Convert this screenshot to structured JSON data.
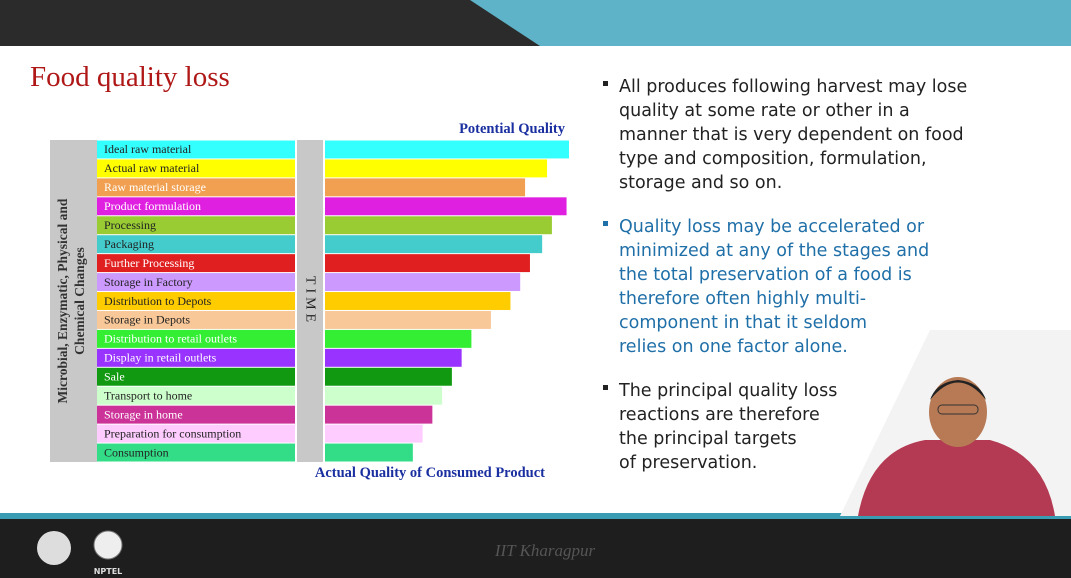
{
  "slide": {
    "title": "Food quality loss",
    "bullets": [
      {
        "lines": [
          "All produces following harvest may lose",
          "quality at some rate or other in a",
          "manner that is very dependent on food",
          "type and composition, formulation,",
          "storage and so on."
        ],
        "color": "#222222"
      },
      {
        "lines": [
          "Quality loss may be accelerated or",
          "minimized at any of the stages and",
          "the total preservation of a food is",
          "therefore often highly multi-",
          "component in that it seldom",
          "relies on one factor alone."
        ],
        "color": "#1f6fa8"
      },
      {
        "lines": [
          "The principal quality loss",
          "reactions are therefore",
          "the principal  targets",
          "of preservation."
        ],
        "color": "#222222"
      }
    ],
    "footer": {
      "institute": "IIT Kharagpur",
      "logo_text": "NPTEL"
    }
  },
  "chart_data": {
    "type": "bar",
    "top_label": "Potential Quality",
    "bottom_label": "Actual Quality of Consumed Product",
    "time_label": "TIME",
    "y_label": [
      "Microbial, Enzymatic, Physical and",
      "Chemical  Changes"
    ],
    "categories": [
      "Ideal raw material",
      "Actual raw material",
      "Raw material storage",
      "Product formulation",
      "Processing",
      "Packaging",
      "Further Processing",
      "Storage in Factory",
      "Distribution to Depots",
      "Storage in Depots",
      "Distribution to retail outlets",
      "Display in retail outlets",
      "Sale",
      "Transport to home",
      "Storage in home",
      "Preparation for consumption",
      "Consumption"
    ],
    "values": [
      100,
      91,
      82,
      99,
      93,
      89,
      84,
      80,
      76,
      68,
      60,
      56,
      52,
      48,
      44,
      40,
      36
    ],
    "colors": [
      "#33ffff",
      "#ffff00",
      "#f0a050",
      "#e020e0",
      "#99cc33",
      "#44cccc",
      "#e02020",
      "#cc99ff",
      "#ffcc00",
      "#f8c898",
      "#33ee33",
      "#9933ff",
      "#119911",
      "#ccffcc",
      "#cc3399",
      "#ffccff",
      "#33dd88"
    ]
  }
}
